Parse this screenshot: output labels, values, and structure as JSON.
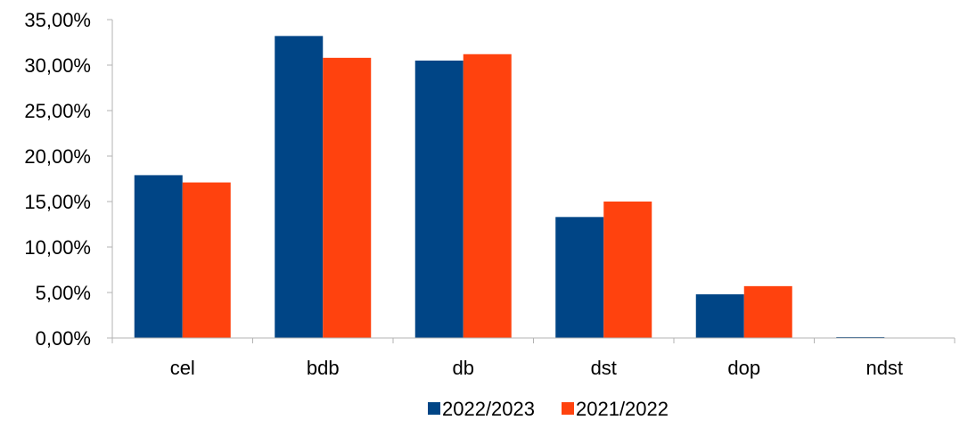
{
  "chart_data": {
    "type": "bar",
    "categories": [
      "cel",
      "bdb",
      "db",
      "dst",
      "dop",
      "ndst"
    ],
    "series": [
      {
        "name": "2022/2023",
        "color": "#004586",
        "values": [
          17.9,
          33.2,
          30.5,
          13.3,
          4.8,
          0.1
        ]
      },
      {
        "name": "2021/2022",
        "color": "#ff420e",
        "values": [
          17.1,
          30.8,
          31.2,
          15.0,
          5.7,
          0.0
        ]
      }
    ],
    "title": "",
    "xlabel": "",
    "ylabel": "",
    "ylim": [
      0,
      35
    ],
    "yticks": [
      "0,00%",
      "5,00%",
      "10,00%",
      "15,00%",
      "20,00%",
      "25,00%",
      "30,00%",
      "35,00%"
    ],
    "grid": false,
    "legend_position": "bottom-center"
  }
}
